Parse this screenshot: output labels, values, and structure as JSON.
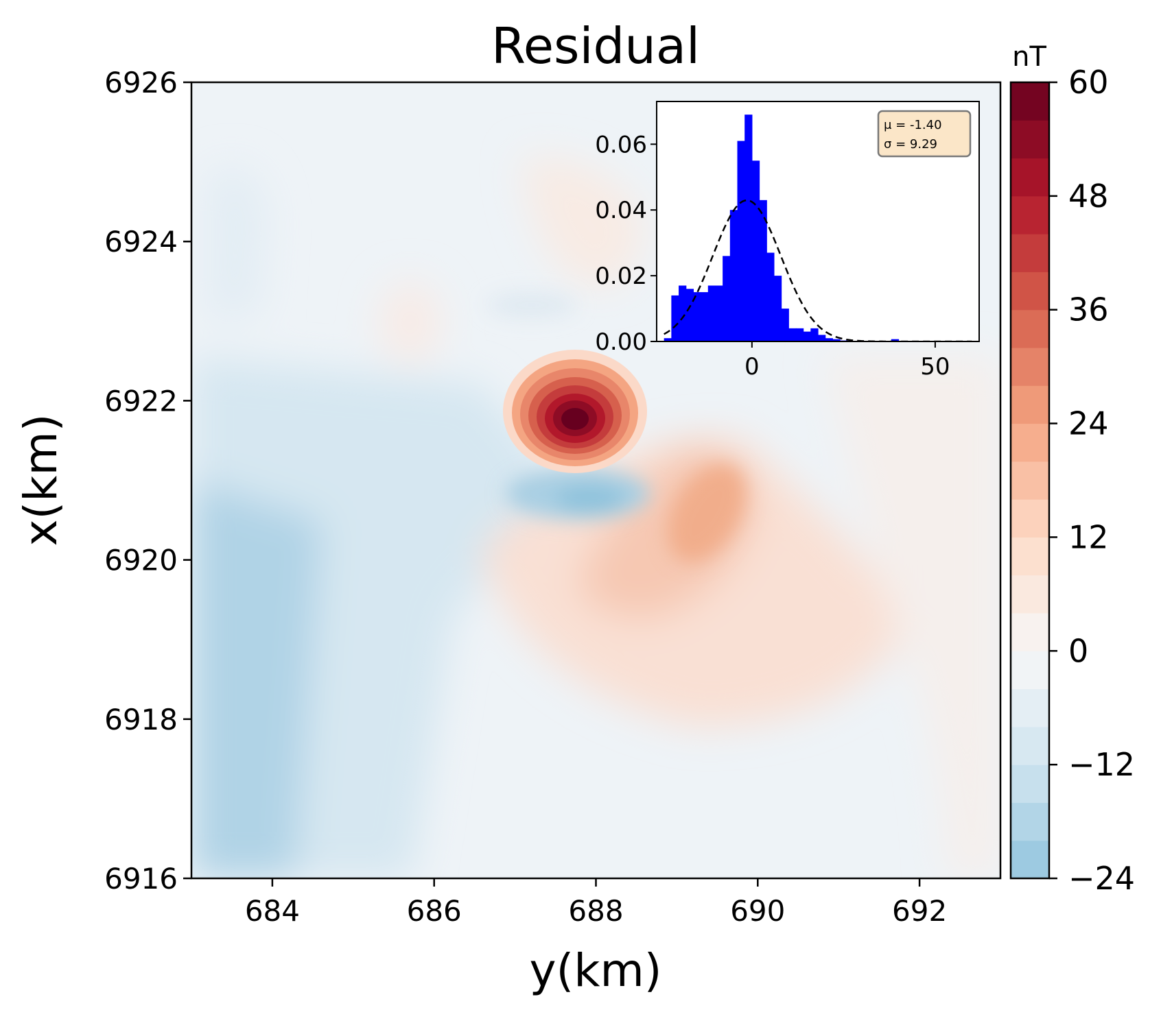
{
  "chart_data": [
    {
      "type": "heatmap",
      "title": "Residual",
      "xlabel": "y(km)",
      "ylabel": "x(km)",
      "xlim": [
        683,
        693
      ],
      "ylim": [
        6916,
        6926
      ],
      "x_ticks": [
        684,
        686,
        688,
        690,
        692
      ],
      "y_ticks": [
        6916,
        6918,
        6920,
        6922,
        6924,
        6926
      ],
      "colorbar": {
        "label": "nT",
        "range": [
          -24,
          60
        ],
        "ticks": [
          -24,
          -12,
          0,
          12,
          24,
          36,
          48,
          60
        ],
        "tick_labels": [
          "−24",
          "−12",
          "0",
          "12",
          "24",
          "36",
          "48",
          "60"
        ],
        "levels": [
          -24,
          -20,
          -16,
          -12,
          -8,
          -4,
          0,
          4,
          8,
          12,
          16,
          20,
          24,
          28,
          32,
          36,
          40,
          44,
          48,
          52,
          56,
          60
        ],
        "colormap": "RdBu_r"
      },
      "features": [
        {
          "name": "positive peak",
          "y_km": 687.8,
          "x_km": 6921.8,
          "value": 60
        },
        {
          "name": "negative trough",
          "y_km": 688.0,
          "x_km": 6920.8,
          "value": -14
        },
        {
          "name": "positive elongated anomaly",
          "y_km": 689.6,
          "x_km": 6920.6,
          "value": 22
        },
        {
          "name": "negative west region",
          "y_km": 683.5,
          "x_km": 6918.5,
          "value": -18
        }
      ]
    },
    {
      "type": "bar",
      "title": "",
      "xlabel": "",
      "ylabel": "",
      "xlim": [
        -26,
        62
      ],
      "ylim": [
        0,
        0.073
      ],
      "x_ticks": [
        0,
        50
      ],
      "y_ticks": [
        0.0,
        0.02,
        0.04,
        0.06
      ],
      "y_tick_labels": [
        "0.00",
        "0.02",
        "0.04",
        "0.06"
      ],
      "bar_color": "#0000ff",
      "bins": [
        {
          "x": -24,
          "value": 0.001
        },
        {
          "x": -22,
          "value": 0.014
        },
        {
          "x": -20,
          "value": 0.017
        },
        {
          "x": -18,
          "value": 0.016
        },
        {
          "x": -16,
          "value": 0.015
        },
        {
          "x": -14,
          "value": 0.015
        },
        {
          "x": -12,
          "value": 0.017
        },
        {
          "x": -10,
          "value": 0.017
        },
        {
          "x": -8,
          "value": 0.026
        },
        {
          "x": -6,
          "value": 0.04
        },
        {
          "x": -4,
          "value": 0.061
        },
        {
          "x": -2,
          "value": 0.069
        },
        {
          "x": 0,
          "value": 0.055
        },
        {
          "x": 2,
          "value": 0.043
        },
        {
          "x": 4,
          "value": 0.027
        },
        {
          "x": 6,
          "value": 0.02
        },
        {
          "x": 8,
          "value": 0.01
        },
        {
          "x": 10,
          "value": 0.004
        },
        {
          "x": 12,
          "value": 0.004
        },
        {
          "x": 14,
          "value": 0.003
        },
        {
          "x": 16,
          "value": 0.004
        },
        {
          "x": 18,
          "value": 0.002
        },
        {
          "x": 20,
          "value": 0.001
        },
        {
          "x": 22,
          "value": 0.0007
        },
        {
          "x": 24,
          "value": 0.0003
        },
        {
          "x": 38,
          "value": 0.0007
        }
      ],
      "normal_fit": {
        "mu": -1.4,
        "sigma": 9.29,
        "style": "dashed",
        "color": "#000000"
      },
      "stats_box": {
        "line1": "μ = -1.40",
        "line2": "σ = 9.29",
        "placement": "top-right",
        "color": "#fbe6c8"
      }
    }
  ]
}
